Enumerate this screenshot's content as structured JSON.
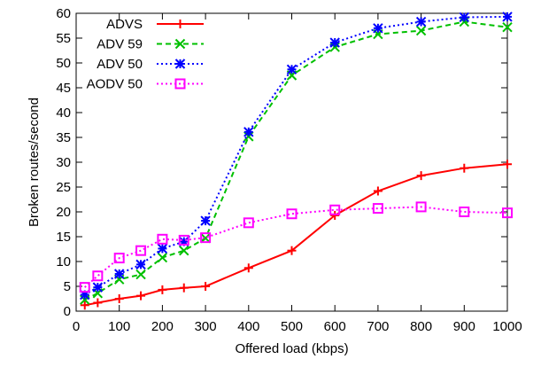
{
  "chart_data": {
    "type": "line",
    "xlabel": "Offered load (kbps)",
    "ylabel": "Broken routes/second",
    "xlim": [
      0,
      1000
    ],
    "ylim": [
      0,
      60
    ],
    "xticks": [
      0,
      100,
      200,
      300,
      400,
      500,
      600,
      700,
      800,
      900,
      1000
    ],
    "yticks": [
      0,
      5,
      10,
      15,
      20,
      25,
      30,
      35,
      40,
      45,
      50,
      55,
      60
    ],
    "grid": false,
    "legend_position": "top-left",
    "series": [
      {
        "name": "ADVS",
        "color": "#ff0000",
        "line_style": "solid",
        "marker": "plus",
        "x": [
          20,
          50,
          100,
          150,
          200,
          250,
          300,
          400,
          500,
          600,
          700,
          800,
          900,
          1000
        ],
        "y": [
          1.2,
          1.7,
          2.5,
          3.1,
          4.3,
          4.7,
          5.0,
          8.7,
          12.2,
          19.3,
          24.2,
          27.3,
          28.8,
          29.6
        ]
      },
      {
        "name": "ADV 59",
        "color": "#00c000",
        "line_style": "dashed",
        "marker": "x",
        "x": [
          20,
          50,
          100,
          150,
          200,
          250,
          300,
          400,
          500,
          600,
          700,
          800,
          900,
          1000
        ],
        "y": [
          2.3,
          3.6,
          6.4,
          7.4,
          10.8,
          12.2,
          14.7,
          35.2,
          47.5,
          53.2,
          55.8,
          56.5,
          58.3,
          57.2
        ]
      },
      {
        "name": "ADV 50",
        "color": "#0000ff",
        "line_style": "dotted",
        "marker": "star",
        "x": [
          20,
          50,
          100,
          150,
          200,
          250,
          300,
          400,
          500,
          600,
          700,
          800,
          900,
          1000
        ],
        "y": [
          3.3,
          4.8,
          7.5,
          9.4,
          12.6,
          14.0,
          18.2,
          36.1,
          48.7,
          54.1,
          57.0,
          58.3,
          59.2,
          59.3
        ]
      },
      {
        "name": "AODV 50",
        "color": "#ff00ff",
        "line_style": "dotted",
        "marker": "open-square",
        "x": [
          20,
          50,
          100,
          150,
          200,
          250,
          300,
          400,
          500,
          600,
          700,
          800,
          900,
          1000
        ],
        "y": [
          4.8,
          7.1,
          10.7,
          12.2,
          14.5,
          14.3,
          14.8,
          17.8,
          19.6,
          20.4,
          20.7,
          21.0,
          20.0,
          19.8
        ]
      }
    ]
  }
}
